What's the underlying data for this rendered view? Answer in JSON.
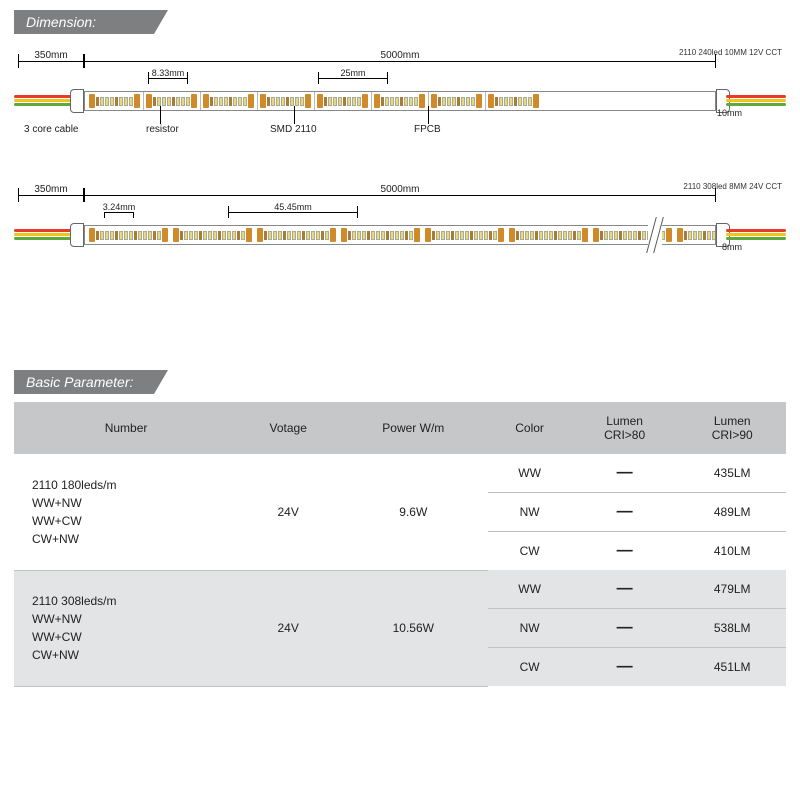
{
  "sections": {
    "dimension": "Dimension:",
    "basic_parameter": "Basic Parameter:"
  },
  "strip1": {
    "spec_line": "2110 240led 10MM 12V CCT",
    "lead_mm": "350mm",
    "length_mm": "5000mm",
    "pitch_mm": "8.33mm",
    "cut_mm": "25mm",
    "height_mm": "10mm",
    "labels": {
      "cable": "3 core cable",
      "resistor": "resistor",
      "smd": "SMD 2110",
      "fpcb": "FPCB"
    },
    "cable_colors": [
      "#e83a2a",
      "#f0c419",
      "#5fa83a"
    ],
    "pcb_bg": "#ffffff",
    "pad_color": "#d08a2a",
    "led_color": "#e8d97a",
    "resistor_color": "#a77b3a"
  },
  "strip2": {
    "spec_line": "2110 308led 8MM 24V CCT",
    "lead_mm": "350mm",
    "length_mm": "5000mm",
    "pitch_mm": "3.24mm",
    "cut_mm": "45.45mm",
    "height_mm": "8mm"
  },
  "table": {
    "columns": [
      "Number",
      "Votage",
      "Power W/m",
      "Color",
      "Lumen CRI>80",
      "Lumen CRI>90"
    ],
    "groups": [
      {
        "number_lines": [
          "2110 180leds/m",
          "WW+NW",
          "WW+CW",
          "CW+NW"
        ],
        "voltage": "24V",
        "power": "9.6W",
        "rows": [
          {
            "color": "WW",
            "cri80": "—",
            "cri90": "435LM"
          },
          {
            "color": "NW",
            "cri80": "—",
            "cri90": "489LM"
          },
          {
            "color": "CW",
            "cri80": "—",
            "cri90": "410LM"
          }
        ]
      },
      {
        "number_lines": [
          "2110 308leds/m",
          "WW+NW",
          "WW+CW",
          "CW+NW"
        ],
        "voltage": "24V",
        "power": "10.56W",
        "rows": [
          {
            "color": "WW",
            "cri80": "—",
            "cri90": "479LM"
          },
          {
            "color": "NW",
            "cri80": "—",
            "cri90": "538LM"
          },
          {
            "color": "CW",
            "cri80": "—",
            "cri90": "451LM"
          }
        ]
      }
    ]
  },
  "colors": {
    "header_bg": "#7e7f80",
    "table_header_bg": "#c6c7c8",
    "table_alt_bg": "#e3e4e5"
  }
}
